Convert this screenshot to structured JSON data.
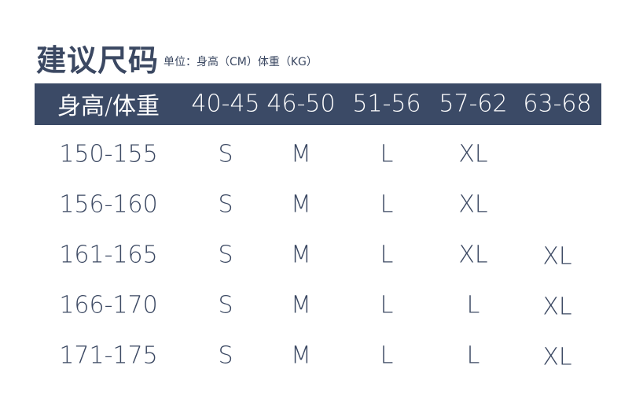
{
  "title": "建议尺码",
  "unit": "单位：身高（CM）体重（KG）",
  "header": [
    "身高/体重",
    "40-45",
    "46-50",
    "51-56",
    "57-62",
    "63-68"
  ],
  "rows": [
    [
      "150-155",
      "S",
      "M",
      "L",
      "XL",
      ""
    ],
    [
      "156-160",
      "S",
      "M",
      "L",
      "XL",
      ""
    ],
    [
      "161-165",
      "S",
      "M",
      "L",
      "XL",
      "XL"
    ],
    [
      "166-170",
      "S",
      "M",
      "L",
      "L",
      "XL"
    ],
    [
      "171-175",
      "S",
      "M",
      "L",
      "L",
      "XL"
    ]
  ],
  "colors": {
    "header_bg": "#3b4a66",
    "text": "#3b4862"
  }
}
